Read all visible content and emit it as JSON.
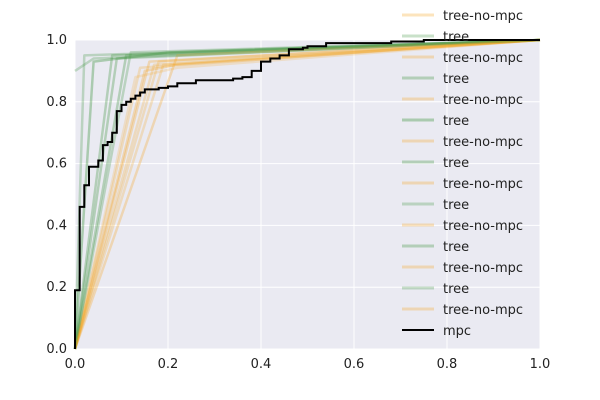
{
  "chart_data": {
    "type": "line",
    "xlim": [
      0,
      1
    ],
    "ylim": [
      0,
      1
    ],
    "x_ticks": [
      "0.0",
      "0.2",
      "0.4",
      "0.6",
      "0.8",
      "1.0"
    ],
    "y_ticks": [
      "0.0",
      "0.2",
      "0.4",
      "0.6",
      "0.8",
      "1.0"
    ],
    "grid": true,
    "legend_placement": "right, extending above the plot",
    "colors": {
      "plot_bg": "#eaeaf2",
      "grid": "#ffffff",
      "tree": "#4c9a4c",
      "tree-no-mpc": "#f5a623",
      "mpc": "#000000"
    },
    "series": [
      {
        "name": "tree-no-mpc",
        "color": "#f5a623",
        "alpha": 0.2,
        "points": [
          [
            0,
            0
          ],
          [
            0.13,
            0.88
          ],
          [
            0.22,
            0.91
          ],
          [
            1,
            1
          ]
        ]
      },
      {
        "name": "tree",
        "color": "#4c9a4c",
        "alpha": 0.3,
        "points": [
          [
            0,
            0.9
          ],
          [
            0.04,
            0.94
          ],
          [
            1,
            1
          ]
        ]
      },
      {
        "name": "tree-no-mpc",
        "color": "#f5a623",
        "alpha": 0.3,
        "points": [
          [
            0,
            0
          ],
          [
            0.15,
            0.9
          ],
          [
            0.22,
            0.92
          ],
          [
            1,
            1
          ]
        ]
      },
      {
        "name": "tree",
        "color": "#4c9a4c",
        "alpha": 0.35,
        "points": [
          [
            0,
            0
          ],
          [
            0.08,
            0.95
          ],
          [
            1,
            1
          ]
        ]
      },
      {
        "name": "tree-no-mpc",
        "color": "#f5a623",
        "alpha": 0.3,
        "points": [
          [
            0,
            0
          ],
          [
            0.16,
            0.93
          ],
          [
            1,
            1
          ]
        ]
      },
      {
        "name": "tree",
        "color": "#4c9a4c",
        "alpha": 0.4,
        "points": [
          [
            0,
            0
          ],
          [
            0.04,
            0.93
          ],
          [
            0.2,
            0.96
          ],
          [
            1,
            1
          ]
        ]
      },
      {
        "name": "tree-no-mpc",
        "color": "#f5a623",
        "alpha": 0.25,
        "points": [
          [
            0,
            0
          ],
          [
            0.19,
            0.92
          ],
          [
            1,
            1
          ]
        ]
      },
      {
        "name": "tree",
        "color": "#4c9a4c",
        "alpha": 0.35,
        "points": [
          [
            0,
            0
          ],
          [
            0.11,
            0.95
          ],
          [
            1,
            1
          ]
        ]
      },
      {
        "name": "tree-no-mpc",
        "color": "#f5a623",
        "alpha": 0.25,
        "points": [
          [
            0,
            0
          ],
          [
            0.14,
            0.91
          ],
          [
            1,
            1
          ]
        ]
      },
      {
        "name": "tree",
        "color": "#4c9a4c",
        "alpha": 0.3,
        "points": [
          [
            0,
            0
          ],
          [
            0.02,
            0.95
          ],
          [
            1,
            1
          ]
        ]
      },
      {
        "name": "tree-no-mpc",
        "color": "#f5a623",
        "alpha": 0.3,
        "points": [
          [
            0,
            0
          ],
          [
            0.22,
            0.95
          ],
          [
            1,
            1
          ]
        ]
      },
      {
        "name": "tree",
        "color": "#4c9a4c",
        "alpha": 0.35,
        "points": [
          [
            0,
            0
          ],
          [
            0.09,
            0.94
          ],
          [
            1,
            1
          ]
        ]
      },
      {
        "name": "tree-no-mpc",
        "color": "#f5a623",
        "alpha": 0.25,
        "points": [
          [
            0,
            0
          ],
          [
            0.17,
            0.92
          ],
          [
            1,
            1
          ]
        ]
      },
      {
        "name": "tree",
        "color": "#4c9a4c",
        "alpha": 0.3,
        "points": [
          [
            0,
            0
          ],
          [
            0.12,
            0.96
          ],
          [
            1,
            1
          ]
        ]
      },
      {
        "name": "tree-no-mpc",
        "color": "#f5a623",
        "alpha": 0.25,
        "points": [
          [
            0,
            0
          ],
          [
            0.18,
            0.93
          ],
          [
            1,
            1
          ]
        ]
      },
      {
        "name": "mpc",
        "color": "#000000",
        "alpha": 1.0,
        "step": true,
        "points": [
          [
            0,
            0
          ],
          [
            0,
            0.19
          ],
          [
            0.01,
            0.19
          ],
          [
            0.01,
            0.46
          ],
          [
            0.02,
            0.46
          ],
          [
            0.02,
            0.53
          ],
          [
            0.03,
            0.53
          ],
          [
            0.03,
            0.59
          ],
          [
            0.05,
            0.59
          ],
          [
            0.05,
            0.61
          ],
          [
            0.06,
            0.61
          ],
          [
            0.06,
            0.66
          ],
          [
            0.07,
            0.66
          ],
          [
            0.07,
            0.67
          ],
          [
            0.08,
            0.67
          ],
          [
            0.08,
            0.7
          ],
          [
            0.09,
            0.7
          ],
          [
            0.09,
            0.77
          ],
          [
            0.1,
            0.77
          ],
          [
            0.1,
            0.79
          ],
          [
            0.11,
            0.79
          ],
          [
            0.11,
            0.8
          ],
          [
            0.12,
            0.8
          ],
          [
            0.12,
            0.81
          ],
          [
            0.13,
            0.81
          ],
          [
            0.13,
            0.82
          ],
          [
            0.14,
            0.82
          ],
          [
            0.14,
            0.83
          ],
          [
            0.15,
            0.83
          ],
          [
            0.15,
            0.84
          ],
          [
            0.18,
            0.84
          ],
          [
            0.18,
            0.845
          ],
          [
            0.2,
            0.845
          ],
          [
            0.2,
            0.85
          ],
          [
            0.22,
            0.85
          ],
          [
            0.22,
            0.86
          ],
          [
            0.26,
            0.86
          ],
          [
            0.26,
            0.87
          ],
          [
            0.34,
            0.87
          ],
          [
            0.34,
            0.875
          ],
          [
            0.36,
            0.875
          ],
          [
            0.36,
            0.88
          ],
          [
            0.38,
            0.88
          ],
          [
            0.38,
            0.9
          ],
          [
            0.4,
            0.9
          ],
          [
            0.4,
            0.93
          ],
          [
            0.42,
            0.93
          ],
          [
            0.42,
            0.94
          ],
          [
            0.44,
            0.94
          ],
          [
            0.44,
            0.95
          ],
          [
            0.46,
            0.95
          ],
          [
            0.46,
            0.97
          ],
          [
            0.49,
            0.97
          ],
          [
            0.49,
            0.975
          ],
          [
            0.5,
            0.975
          ],
          [
            0.5,
            0.98
          ],
          [
            0.54,
            0.98
          ],
          [
            0.54,
            0.99
          ],
          [
            0.68,
            0.99
          ],
          [
            0.68,
            0.995
          ],
          [
            0.75,
            0.995
          ],
          [
            0.75,
            1.0
          ],
          [
            1,
            1.0
          ]
        ]
      }
    ]
  }
}
